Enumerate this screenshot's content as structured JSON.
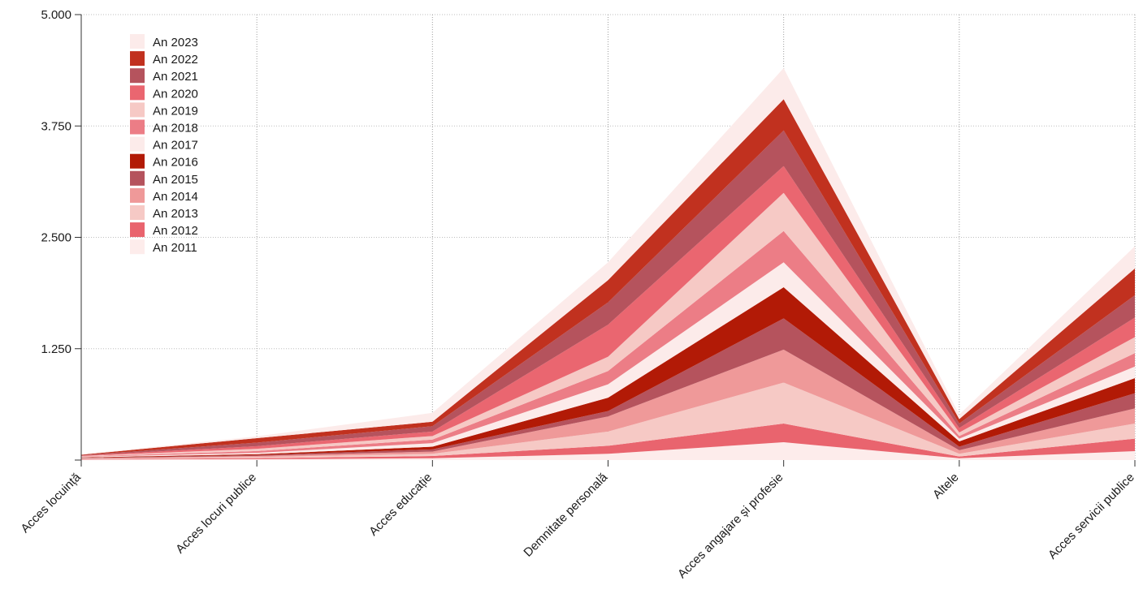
{
  "chart_data": {
    "type": "area",
    "stacked": true,
    "title": "",
    "xlabel": "",
    "ylabel": "",
    "ylim": [
      0,
      5000
    ],
    "y_ticks": [
      0,
      1250,
      2500,
      3750,
      5000
    ],
    "y_tick_labels": [
      "",
      "1.250",
      "2.500",
      "3.750",
      "5.000"
    ],
    "grid": true,
    "legend_position": "top-left",
    "categories": [
      "Acces locuință",
      "Acces locuri publice",
      "Acces educație",
      "Demnitate personală",
      "Acces angajare și profesie",
      "Altele",
      "Acces servicii publice"
    ],
    "series": [
      {
        "name": "An 2011",
        "color": "#fdeceb",
        "values": [
          5,
          10,
          20,
          70,
          200,
          20,
          100
        ]
      },
      {
        "name": "An 2012",
        "color": "#e9646e",
        "values": [
          5,
          12,
          25,
          90,
          210,
          20,
          140
        ]
      },
      {
        "name": "An 2013",
        "color": "#f6c9c5",
        "values": [
          5,
          12,
          25,
          160,
          460,
          30,
          170
        ]
      },
      {
        "name": "An 2014",
        "color": "#ef9999",
        "values": [
          5,
          12,
          25,
          170,
          370,
          40,
          170
        ]
      },
      {
        "name": "An 2015",
        "color": "#b5535d",
        "values": [
          5,
          10,
          25,
          60,
          350,
          40,
          170
        ]
      },
      {
        "name": "An 2016",
        "color": "#b21a06",
        "values": [
          5,
          10,
          30,
          150,
          350,
          60,
          170
        ]
      },
      {
        "name": "An 2017",
        "color": "#fcebea",
        "values": [
          5,
          15,
          40,
          150,
          280,
          30,
          130
        ]
      },
      {
        "name": "An 2018",
        "color": "#ec7d86",
        "values": [
          5,
          20,
          40,
          150,
          350,
          30,
          150
        ]
      },
      {
        "name": "An 2019",
        "color": "#f6c9c5",
        "values": [
          5,
          25,
          40,
          160,
          430,
          40,
          180
        ]
      },
      {
        "name": "An 2020",
        "color": "#ea6670",
        "values": [
          5,
          30,
          50,
          360,
          300,
          50,
          220
        ]
      },
      {
        "name": "An 2021",
        "color": "#b5535d",
        "values": [
          5,
          40,
          60,
          250,
          400,
          50,
          250
        ]
      },
      {
        "name": "An 2022",
        "color": "#c1311f",
        "values": [
          5,
          50,
          50,
          250,
          350,
          50,
          300
        ]
      },
      {
        "name": "An 2023",
        "color": "#fcebea",
        "values": [
          5,
          20,
          100,
          200,
          350,
          50,
          250
        ]
      }
    ]
  }
}
